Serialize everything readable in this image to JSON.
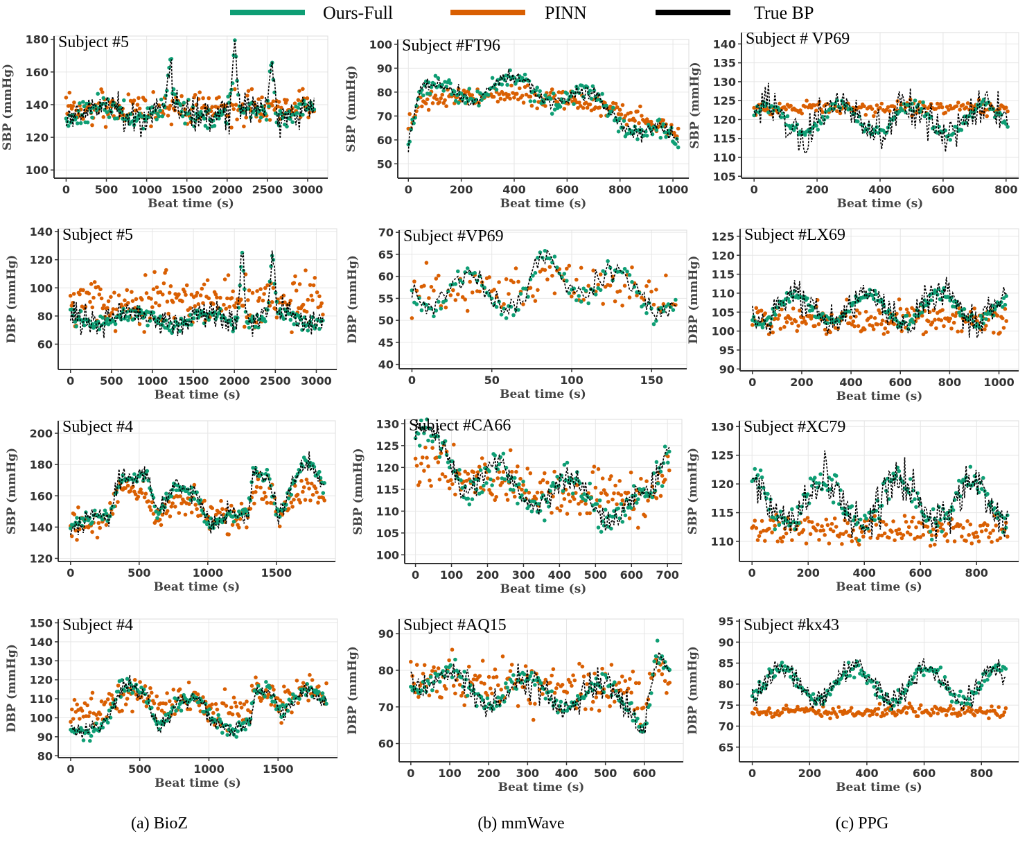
{
  "legend": [
    {
      "label": "Ours-Full",
      "color": "#0e9e74"
    },
    {
      "label": "PINN",
      "color": "#d95f02"
    },
    {
      "label": "True BP",
      "color": "#000000"
    }
  ],
  "captions": [
    "(a) BioZ",
    "(b) mmWave",
    "(c) PPG"
  ],
  "colors": {
    "ours": "#0e9e74",
    "pinn": "#d95f02",
    "true": "#000000",
    "grid": "#e6e6e6",
    "axis": "#333333"
  },
  "chart_data": [
    {
      "id": "p00",
      "type": "scatter",
      "title": "Subject #5",
      "xlabel": "Beat time (s)",
      "ylabel": "SBP (mmHg)",
      "xlim": [
        -150,
        3250
      ],
      "ylim": [
        95,
        182
      ],
      "xticks": [
        0,
        500,
        1000,
        1500,
        2000,
        2500,
        3000
      ],
      "yticks": [
        100,
        120,
        140,
        160,
        180
      ],
      "duration": 3080,
      "n": 220,
      "true_baseline": 135,
      "true_noise": 9,
      "ours_noise": 5,
      "pinn_offset": 3,
      "pinn_noise": 7,
      "peaks": [
        {
          "x": 0.42,
          "v": 28
        },
        {
          "x": 0.68,
          "v": 38
        },
        {
          "x": 0.83,
          "v": 35
        }
      ],
      "seed": 11
    },
    {
      "id": "p01",
      "type": "scatter",
      "title": "Subject #FT96",
      "xlabel": "Beat time (s)",
      "ylabel": "SBP (mmHg)",
      "xlim": [
        -40,
        1060
      ],
      "ylim": [
        44,
        102
      ],
      "xticks": [
        0,
        200,
        400,
        600,
        800,
        1000
      ],
      "yticks": [
        50,
        60,
        70,
        80,
        90,
        100
      ],
      "duration": 1020,
      "n": 200,
      "true_baseline": 79,
      "true_noise": 3,
      "ours_noise": 3,
      "pinn_offset": -2,
      "pinn_noise": 3,
      "trend": [
        {
          "x": 0.0,
          "v": -20
        },
        {
          "x": 0.04,
          "v": 0
        },
        {
          "x": 0.45,
          "v": 3
        },
        {
          "x": 0.7,
          "v": -4
        },
        {
          "x": 1.0,
          "v": -22
        }
      ],
      "seed": 12
    },
    {
      "id": "p02",
      "type": "scatter",
      "title": "Subject # VP69",
      "xlabel": "Beat time (s)",
      "ylabel": "SBP (mmHg)",
      "xlim": [
        -40,
        840
      ],
      "ylim": [
        104.5,
        143
      ],
      "xticks": [
        0,
        200,
        400,
        600,
        800
      ],
      "yticks": [
        105,
        110,
        115,
        120,
        125,
        130,
        135,
        140
      ],
      "duration": 805,
      "n": 160,
      "true_baseline": 120,
      "true_noise": 5,
      "ours_noise": 1.2,
      "pinn_offset": 3,
      "pinn_noise": 1.3,
      "seed": 13
    },
    {
      "id": "p10",
      "type": "scatter",
      "title": "Subject #5",
      "xlabel": "Beat time (s)",
      "ylabel": "DBP (mmHg)",
      "xlim": [
        -150,
        3250
      ],
      "ylim": [
        42,
        142
      ],
      "xticks": [
        0,
        500,
        1000,
        1500,
        2000,
        2500,
        3000
      ],
      "yticks": [
        60,
        80,
        100,
        120,
        140
      ],
      "duration": 3080,
      "n": 220,
      "true_baseline": 78,
      "true_noise": 9,
      "ours_noise": 4,
      "pinn_offset": 12,
      "pinn_noise": 12,
      "peaks": [
        {
          "x": 0.68,
          "v": 45
        },
        {
          "x": 0.8,
          "v": 40
        }
      ],
      "seed": 21
    },
    {
      "id": "p11",
      "type": "scatter",
      "title": "Subject #VP69",
      "xlabel": "Beat time (s)",
      "ylabel": "DBP (mmHg)",
      "xlim": [
        -8,
        172
      ],
      "ylim": [
        39,
        70.5
      ],
      "xticks": [
        0,
        50,
        100,
        150
      ],
      "yticks": [
        40,
        45,
        50,
        55,
        60,
        65,
        70
      ],
      "duration": 165,
      "n": 110,
      "true_baseline": 57,
      "true_noise": 2.5,
      "ours_noise": 1.5,
      "pinn_offset": 0,
      "pinn_noise": 3.5,
      "trend": [
        {
          "x": 0.0,
          "v": 0
        },
        {
          "x": 0.44,
          "v": -1
        },
        {
          "x": 0.48,
          "v": 4
        },
        {
          "x": 0.7,
          "v": 2
        },
        {
          "x": 1.0,
          "v": -3
        }
      ],
      "seed": 22
    },
    {
      "id": "p12",
      "type": "scatter",
      "title": "Subject #LX69",
      "xlabel": "Beat time (s)",
      "ylabel": "DBP (mmHg)",
      "xlim": [
        -50,
        1080
      ],
      "ylim": [
        89.5,
        127
      ],
      "xticks": [
        0,
        200,
        400,
        600,
        800,
        1000
      ],
      "yticks": [
        90,
        95,
        100,
        105,
        110,
        115,
        120,
        125
      ],
      "duration": 1030,
      "n": 200,
      "true_baseline": 106,
      "true_noise": 4,
      "ours_noise": 1.2,
      "pinn_offset": -3,
      "pinn_noise": 3,
      "seed": 23
    },
    {
      "id": "p20",
      "type": "scatter",
      "title": "Subject #4",
      "xlabel": "Beat time (s)",
      "ylabel": "SBP (mmHg)",
      "xlim": [
        -90,
        1930
      ],
      "ylim": [
        118,
        208
      ],
      "xticks": [
        0,
        500,
        1000,
        1500
      ],
      "yticks": [
        120,
        140,
        160,
        180,
        200
      ],
      "duration": 1850,
      "n": 200,
      "true_baseline": 145,
      "true_noise": 6,
      "ours_noise": 3,
      "pinn_offset": 0,
      "pinn_noise": 7,
      "trend": [
        {
          "x": 0.0,
          "v": -5
        },
        {
          "x": 0.15,
          "v": 0
        },
        {
          "x": 0.2,
          "v": 30
        },
        {
          "x": 0.3,
          "v": 30
        },
        {
          "x": 0.34,
          "v": 0
        },
        {
          "x": 0.42,
          "v": 20
        },
        {
          "x": 0.5,
          "v": 18
        },
        {
          "x": 0.55,
          "v": 0
        },
        {
          "x": 0.7,
          "v": 0
        },
        {
          "x": 0.72,
          "v": 30
        },
        {
          "x": 0.78,
          "v": 30
        },
        {
          "x": 0.82,
          "v": 5
        },
        {
          "x": 0.92,
          "v": 35
        },
        {
          "x": 1.0,
          "v": 20
        }
      ],
      "seed": 31
    },
    {
      "id": "p21",
      "type": "scatter",
      "title": "Subject #CA66",
      "xlabel": "Beat time (s)",
      "ylabel": "SBP (mmHg)",
      "xlim": [
        -30,
        740
      ],
      "ylim": [
        98,
        131
      ],
      "xticks": [
        0,
        100,
        200,
        300,
        400,
        500,
        600,
        700
      ],
      "yticks": [
        100,
        105,
        110,
        115,
        120,
        125,
        130
      ],
      "duration": 705,
      "n": 180,
      "true_baseline": 116,
      "true_noise": 2.5,
      "ours_noise": 2.5,
      "pinn_offset": 0,
      "pinn_noise": 4,
      "trend": [
        {
          "x": 0.0,
          "v": 10
        },
        {
          "x": 0.12,
          "v": 8
        },
        {
          "x": 0.2,
          "v": 2
        },
        {
          "x": 0.5,
          "v": -1
        },
        {
          "x": 0.92,
          "v": -6
        },
        {
          "x": 1.0,
          "v": 10
        }
      ],
      "seed": 32
    },
    {
      "id": "p22",
      "type": "scatter",
      "title": "Subject #XC79",
      "xlabel": "Beat time (s)",
      "ylabel": "SBP (mmHg)",
      "xlim": [
        -45,
        950
      ],
      "ylim": [
        106.5,
        131
      ],
      "xticks": [
        0,
        200,
        400,
        600,
        800
      ],
      "yticks": [
        110,
        115,
        120,
        125,
        130
      ],
      "duration": 910,
      "n": 180,
      "true_baseline": 117,
      "true_noise": 3.5,
      "ours_noise": 1.8,
      "pinn_offset": -5,
      "pinn_noise": 1.8,
      "seed": 33
    },
    {
      "id": "p30",
      "type": "scatter",
      "title": "Subject #4",
      "xlabel": "Beat time (s)",
      "ylabel": "DBP (mmHg)",
      "xlim": [
        -90,
        1930
      ],
      "ylim": [
        79,
        152
      ],
      "xticks": [
        0,
        500,
        1000,
        1500
      ],
      "yticks": [
        80,
        90,
        100,
        110,
        120,
        130,
        140,
        150
      ],
      "duration": 1850,
      "n": 200,
      "true_baseline": 98,
      "true_noise": 4,
      "ours_noise": 3,
      "pinn_offset": 6,
      "pinn_noise": 6,
      "trend": [
        {
          "x": 0.0,
          "v": -3
        },
        {
          "x": 0.15,
          "v": 0
        },
        {
          "x": 0.2,
          "v": 15
        },
        {
          "x": 0.3,
          "v": 15
        },
        {
          "x": 0.34,
          "v": 0
        },
        {
          "x": 0.42,
          "v": 10
        },
        {
          "x": 0.5,
          "v": 8
        },
        {
          "x": 0.55,
          "v": 0
        },
        {
          "x": 0.7,
          "v": 0
        },
        {
          "x": 0.72,
          "v": 15
        },
        {
          "x": 0.78,
          "v": 12
        },
        {
          "x": 0.82,
          "v": 2
        },
        {
          "x": 0.92,
          "v": 22
        },
        {
          "x": 1.0,
          "v": 10
        }
      ],
      "seed": 41
    },
    {
      "id": "p31",
      "type": "scatter",
      "title": "Subject #AQ15",
      "xlabel": "Beat time (s)",
      "ylabel": "DBP (mmHg)",
      "xlim": [
        -30,
        700
      ],
      "ylim": [
        55,
        94
      ],
      "xticks": [
        0,
        100,
        200,
        300,
        400,
        500,
        600
      ],
      "yticks": [
        60,
        70,
        80,
        90
      ],
      "duration": 665,
      "n": 170,
      "true_baseline": 74,
      "true_noise": 4,
      "ours_noise": 2,
      "pinn_offset": 2,
      "pinn_noise": 5,
      "trend": [
        {
          "x": 0.0,
          "v": 5
        },
        {
          "x": 0.2,
          "v": 1
        },
        {
          "x": 0.85,
          "v": -2
        },
        {
          "x": 0.9,
          "v": -8
        },
        {
          "x": 0.95,
          "v": 10
        },
        {
          "x": 1.0,
          "v": 2
        }
      ],
      "seed": 42
    },
    {
      "id": "p32",
      "type": "scatter",
      "title": "Subject #kx43",
      "xlabel": "Beat time (s)",
      "ylabel": "DBP (mmHg)",
      "xlim": [
        -45,
        930
      ],
      "ylim": [
        61.5,
        95.5
      ],
      "xticks": [
        0,
        200,
        400,
        600,
        800
      ],
      "yticks": [
        65,
        70,
        75,
        80,
        85,
        90,
        95
      ],
      "duration": 885,
      "n": 180,
      "true_baseline": 80,
      "true_noise": 2.5,
      "ours_noise": 1.2,
      "pinn_offset": -6.5,
      "pinn_noise": 1,
      "seed": 43
    }
  ]
}
